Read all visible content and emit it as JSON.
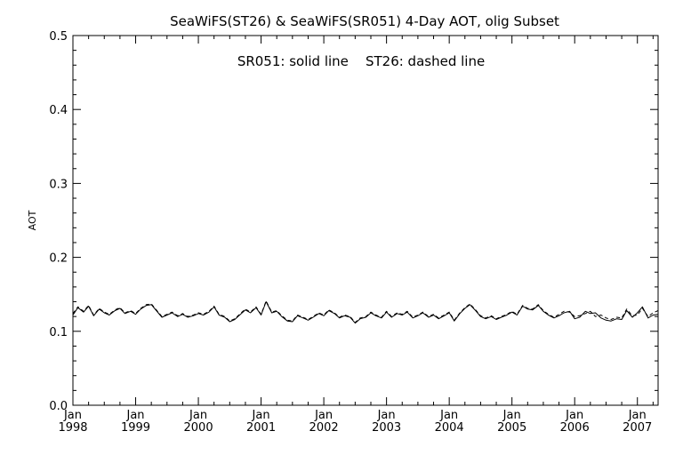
{
  "chart_data": {
    "type": "line",
    "title": "SeaWiFS(ST26) & SeaWiFS(SR051) 4-Day AOT, olig Subset",
    "annotation": "SR051: solid line    ST26: dashed line",
    "ylabel": "AOT",
    "xlabel": "",
    "ylim": [
      0.0,
      0.5
    ],
    "xlim": [
      1998.0,
      2007.33
    ],
    "y_ticks": [
      "0.0",
      "0.1",
      "0.2",
      "0.3",
      "0.4",
      "0.5"
    ],
    "x_ticks": [
      {
        "month": "Jan",
        "year": "1998"
      },
      {
        "month": "Jan",
        "year": "1999"
      },
      {
        "month": "Jan",
        "year": "2000"
      },
      {
        "month": "Jan",
        "year": "2001"
      },
      {
        "month": "Jan",
        "year": "2002"
      },
      {
        "month": "Jan",
        "year": "2003"
      },
      {
        "month": "Jan",
        "year": "2004"
      },
      {
        "month": "Jan",
        "year": "2005"
      },
      {
        "month": "Jan",
        "year": "2006"
      },
      {
        "month": "Jan",
        "year": "2007"
      }
    ],
    "grid": false,
    "series": [
      {
        "name": "SR051",
        "style": "solid",
        "color": "#000000",
        "x": [
          1998.0,
          1998.08,
          1998.17,
          1998.25,
          1998.33,
          1998.42,
          1998.5,
          1998.58,
          1998.67,
          1998.75,
          1998.83,
          1998.92,
          1999.0,
          1999.08,
          1999.17,
          1999.25,
          1999.33,
          1999.42,
          1999.5,
          1999.58,
          1999.67,
          1999.75,
          1999.83,
          1999.92,
          2000.0,
          2000.08,
          2000.17,
          2000.25,
          2000.33,
          2000.42,
          2000.5,
          2000.58,
          2000.67,
          2000.75,
          2000.83,
          2000.92,
          2001.0,
          2001.08,
          2001.17,
          2001.25,
          2001.33,
          2001.42,
          2001.5,
          2001.58,
          2001.67,
          2001.75,
          2001.83,
          2001.92,
          2002.0,
          2002.08,
          2002.17,
          2002.25,
          2002.33,
          2002.42,
          2002.5,
          2002.58,
          2002.67,
          2002.75,
          2002.83,
          2002.92,
          2003.0,
          2003.08,
          2003.17,
          2003.25,
          2003.33,
          2003.42,
          2003.5,
          2003.58,
          2003.67,
          2003.75,
          2003.83,
          2003.92,
          2004.0,
          2004.08,
          2004.17,
          2004.25,
          2004.33,
          2004.42,
          2004.5,
          2004.58,
          2004.67,
          2004.75,
          2004.83,
          2004.92,
          2005.0,
          2005.08,
          2005.17,
          2005.25,
          2005.33,
          2005.42,
          2005.5,
          2005.58,
          2005.67,
          2005.75,
          2005.83,
          2005.92,
          2006.0,
          2006.08,
          2006.17,
          2006.25,
          2006.33,
          2006.42,
          2006.5,
          2006.58,
          2006.67,
          2006.75,
          2006.83,
          2006.92,
          2007.0,
          2007.08,
          2007.17,
          2007.25,
          2007.33
        ],
        "y": [
          0.122,
          0.132,
          0.126,
          0.134,
          0.121,
          0.13,
          0.125,
          0.122,
          0.128,
          0.131,
          0.124,
          0.127,
          0.123,
          0.13,
          0.135,
          0.136,
          0.128,
          0.119,
          0.122,
          0.125,
          0.12,
          0.123,
          0.119,
          0.121,
          0.124,
          0.122,
          0.126,
          0.133,
          0.122,
          0.119,
          0.113,
          0.116,
          0.123,
          0.129,
          0.125,
          0.132,
          0.122,
          0.14,
          0.125,
          0.127,
          0.12,
          0.114,
          0.113,
          0.121,
          0.118,
          0.115,
          0.119,
          0.124,
          0.121,
          0.128,
          0.124,
          0.118,
          0.121,
          0.119,
          0.111,
          0.117,
          0.119,
          0.125,
          0.121,
          0.118,
          0.126,
          0.119,
          0.124,
          0.122,
          0.126,
          0.118,
          0.121,
          0.125,
          0.119,
          0.122,
          0.117,
          0.121,
          0.125,
          0.114,
          0.124,
          0.131,
          0.136,
          0.128,
          0.12,
          0.117,
          0.12,
          0.116,
          0.119,
          0.122,
          0.126,
          0.122,
          0.134,
          0.13,
          0.129,
          0.135,
          0.127,
          0.122,
          0.118,
          0.121,
          0.125,
          0.127,
          0.117,
          0.119,
          0.127,
          0.124,
          0.125,
          0.118,
          0.115,
          0.114,
          0.117,
          0.116,
          0.128,
          0.119,
          0.125,
          0.133,
          0.118,
          0.122,
          0.123
        ]
      },
      {
        "name": "ST26",
        "style": "dashed",
        "color": "#000000",
        "x": [
          1998.0,
          1998.08,
          1998.17,
          1998.25,
          1998.33,
          1998.42,
          1998.5,
          1998.58,
          1998.67,
          1998.75,
          1998.83,
          1998.92,
          1999.0,
          1999.08,
          1999.17,
          1999.25,
          1999.33,
          1999.42,
          1999.5,
          1999.58,
          1999.67,
          1999.75,
          1999.83,
          1999.92,
          2000.0,
          2000.08,
          2000.17,
          2000.25,
          2000.33,
          2000.42,
          2000.5,
          2000.58,
          2000.67,
          2000.75,
          2000.83,
          2000.92,
          2001.0,
          2001.08,
          2001.17,
          2001.25,
          2001.33,
          2001.42,
          2001.5,
          2001.58,
          2001.67,
          2001.75,
          2001.83,
          2001.92,
          2002.0,
          2002.08,
          2002.17,
          2002.25,
          2002.33,
          2002.42,
          2002.5,
          2002.58,
          2002.67,
          2002.75,
          2002.83,
          2002.92,
          2003.0,
          2003.08,
          2003.17,
          2003.25,
          2003.33,
          2003.42,
          2003.5,
          2003.58,
          2003.67,
          2003.75,
          2003.83,
          2003.92,
          2004.0,
          2004.08,
          2004.17,
          2004.25,
          2004.33,
          2004.42,
          2004.5,
          2004.58,
          2004.67,
          2004.75,
          2004.83,
          2004.92,
          2005.0,
          2005.08,
          2005.17,
          2005.25,
          2005.33,
          2005.42,
          2005.5,
          2005.58,
          2005.67,
          2005.75,
          2005.83,
          2005.92,
          2006.0,
          2006.08,
          2006.17,
          2006.25,
          2006.33,
          2006.42,
          2006.5,
          2006.58,
          2006.67,
          2006.75,
          2006.83,
          2006.92,
          2007.0,
          2007.08,
          2007.17,
          2007.25,
          2007.33
        ],
        "y": [
          0.124,
          0.133,
          0.127,
          0.135,
          0.122,
          0.131,
          0.126,
          0.123,
          0.129,
          0.132,
          0.125,
          0.128,
          0.124,
          0.131,
          0.136,
          0.137,
          0.129,
          0.12,
          0.123,
          0.126,
          0.121,
          0.124,
          0.12,
          0.122,
          0.125,
          0.123,
          0.127,
          0.134,
          0.123,
          0.12,
          0.114,
          0.117,
          0.124,
          0.13,
          0.126,
          0.133,
          0.123,
          0.141,
          0.126,
          0.128,
          0.121,
          0.115,
          0.114,
          0.122,
          0.119,
          0.116,
          0.12,
          0.125,
          0.122,
          0.129,
          0.125,
          0.119,
          0.122,
          0.12,
          0.112,
          0.118,
          0.12,
          0.126,
          0.122,
          0.119,
          0.127,
          0.12,
          0.125,
          0.123,
          0.127,
          0.119,
          0.122,
          0.126,
          0.12,
          0.123,
          0.118,
          0.122,
          0.126,
          0.115,
          0.125,
          0.132,
          0.137,
          0.129,
          0.121,
          0.118,
          0.121,
          0.117,
          0.12,
          0.123,
          0.127,
          0.123,
          0.135,
          0.131,
          0.13,
          0.136,
          0.128,
          0.123,
          0.119,
          0.123,
          0.127,
          0.126,
          0.12,
          0.121,
          0.124,
          0.127,
          0.12,
          0.122,
          0.118,
          0.116,
          0.119,
          0.118,
          0.13,
          0.121,
          0.122,
          0.131,
          0.12,
          0.125,
          0.128
        ]
      }
    ]
  }
}
